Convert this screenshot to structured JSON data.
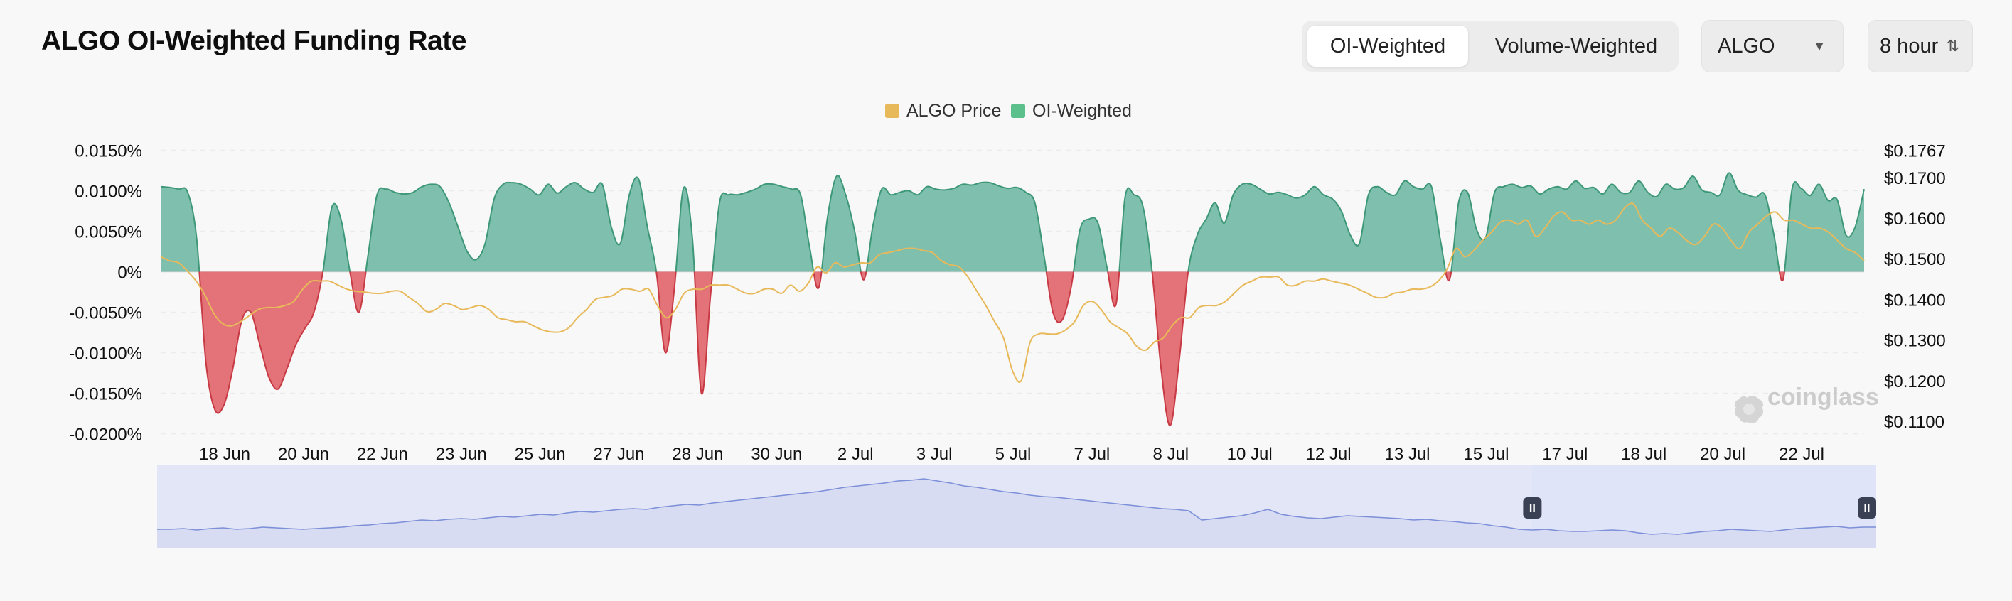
{
  "header": {
    "title": "ALGO OI-Weighted Funding Rate",
    "tabs": [
      {
        "label": "OI-Weighted",
        "active": true
      },
      {
        "label": "Volume-Weighted",
        "active": false
      }
    ],
    "symbol_select": {
      "value": "ALGO"
    },
    "interval_select": {
      "value": "8 hour"
    }
  },
  "watermark": "coinglass",
  "colors": {
    "positive_fill": "#7fbfae",
    "positive_line": "#3e9878",
    "negative_fill": "#e37378",
    "negative_line": "#c83a44",
    "price_line": "#e8b95a",
    "navigator_fill": "#e3e6f6",
    "navigator_line": "#7c8fd8",
    "navigator_window": "#dde2fa"
  },
  "chart_data": {
    "type": "area",
    "title": "ALGO OI-Weighted Funding Rate",
    "legend": [
      {
        "name": "ALGO Price",
        "color": "#e8b95a"
      },
      {
        "name": "OI-Weighted",
        "color": "#5cc08c"
      }
    ],
    "legend_position": "top-center",
    "x_tick_labels": [
      "18 Jun",
      "20 Jun",
      "22 Jun",
      "23 Jun",
      "25 Jun",
      "27 Jun",
      "28 Jun",
      "30 Jun",
      "2 Jul",
      "3 Jul",
      "5 Jul",
      "7 Jul",
      "8 Jul",
      "10 Jul",
      "12 Jul",
      "13 Jul",
      "15 Jul",
      "17 Jul",
      "18 Jul",
      "20 Jul",
      "22 Jul"
    ],
    "y_left": {
      "ylim": [
        -0.02,
        0.015
      ],
      "tick_values": [
        0.015,
        0.01,
        0.005,
        0,
        -0.005,
        -0.01,
        -0.015,
        -0.02
      ],
      "tick_labels": [
        "0.0150%",
        "0.0100%",
        "0.0050%",
        "0%",
        "-0.0050%",
        "-0.0100%",
        "-0.0150%",
        "-0.0200%"
      ]
    },
    "y_right": {
      "ylim": [
        0.11,
        0.1767
      ],
      "tick_values": [
        0.1767,
        0.17,
        0.16,
        0.15,
        0.14,
        0.13,
        0.12,
        0.11
      ],
      "tick_labels": [
        "$0.1767",
        "$0.1700",
        "$0.1600",
        "$0.1500",
        "$0.1400",
        "$0.1300",
        "$0.1200",
        "$0.1100"
      ]
    },
    "grid": true,
    "series": [
      {
        "name": "OI-Weighted",
        "unit": "%",
        "values": [
          0.0105,
          0.0104,
          0.0102,
          0.0098,
          0.004,
          -0.011,
          -0.017,
          -0.0165,
          -0.012,
          -0.006,
          -0.005,
          -0.009,
          -0.013,
          -0.0145,
          -0.012,
          -0.009,
          -0.007,
          -0.005,
          0.0,
          0.008,
          0.0065,
          0.0,
          -0.005,
          0.002,
          0.0095,
          0.0102,
          0.0098,
          0.0096,
          0.0098,
          0.0105,
          0.0108,
          0.0105,
          0.0085,
          0.0055,
          0.0025,
          0.0015,
          0.0035,
          0.009,
          0.0108,
          0.011,
          0.0108,
          0.0102,
          0.0095,
          0.0108,
          0.0097,
          0.0105,
          0.011,
          0.0102,
          0.0098,
          0.0108,
          0.0055,
          0.0035,
          0.0095,
          0.0115,
          0.0055,
          0.0,
          -0.01,
          -0.002,
          0.0103,
          0.004,
          -0.015,
          -0.003,
          0.0085,
          0.0095,
          0.0095,
          0.0098,
          0.0102,
          0.0108,
          0.0108,
          0.0105,
          0.0102,
          0.0095,
          0.003,
          -0.002,
          0.0068,
          0.0118,
          0.0095,
          0.005,
          -0.001,
          0.0055,
          0.0102,
          0.0095,
          0.0098,
          0.01,
          0.0095,
          0.0105,
          0.0102,
          0.0101,
          0.0103,
          0.0108,
          0.0107,
          0.011,
          0.011,
          0.0106,
          0.0103,
          0.0104,
          0.0098,
          0.0085,
          0.002,
          -0.005,
          -0.006,
          -0.002,
          0.0052,
          0.0065,
          0.006,
          0.0005,
          -0.004,
          0.0092,
          0.0095,
          0.008,
          0.0,
          -0.012,
          -0.019,
          -0.011,
          0.0,
          0.0045,
          0.0065,
          0.0085,
          0.006,
          0.0095,
          0.0108,
          0.0108,
          0.0102,
          0.0096,
          0.0098,
          0.0095,
          0.0091,
          0.0095,
          0.0105,
          0.0095,
          0.009,
          0.0075,
          0.0045,
          0.0035,
          0.0095,
          0.0105,
          0.0098,
          0.0095,
          0.0112,
          0.0105,
          0.0102,
          0.0105,
          0.0038,
          -0.001,
          0.0085,
          0.0098,
          0.0052,
          0.0042,
          0.0098,
          0.0105,
          0.0108,
          0.0104,
          0.0106,
          0.0096,
          0.0102,
          0.0105,
          0.0102,
          0.0112,
          0.0103,
          0.0104,
          0.0096,
          0.0108,
          0.0098,
          0.0098,
          0.0112,
          0.0098,
          0.0093,
          0.0108,
          0.0102,
          0.0104,
          0.0118,
          0.0101,
          0.0098,
          0.0095,
          0.0122,
          0.0101,
          0.0095,
          0.0092,
          0.0095,
          0.0045,
          -0.001,
          0.0102,
          0.0103,
          0.0094,
          0.0108,
          0.0088,
          0.0089,
          0.0045,
          0.0055,
          0.0102
        ]
      },
      {
        "name": "ALGO Price",
        "unit": "$",
        "values": [
          0.1505,
          0.1495,
          0.149,
          0.147,
          0.1445,
          0.141,
          0.1365,
          0.134,
          0.1335,
          0.1345,
          0.136,
          0.1375,
          0.138,
          0.138,
          0.1385,
          0.1395,
          0.1425,
          0.1445,
          0.1445,
          0.1445,
          0.1435,
          0.1425,
          0.142,
          0.1418,
          0.1415,
          0.1415,
          0.142,
          0.142,
          0.1405,
          0.139,
          0.137,
          0.1375,
          0.139,
          0.1385,
          0.1375,
          0.138,
          0.1385,
          0.1375,
          0.1355,
          0.135,
          0.1345,
          0.1345,
          0.1335,
          0.1325,
          0.132,
          0.132,
          0.133,
          0.1355,
          0.1375,
          0.14,
          0.1405,
          0.141,
          0.1425,
          0.1425,
          0.142,
          0.1425,
          0.1385,
          0.1355,
          0.1375,
          0.1415,
          0.1425,
          0.1425,
          0.1435,
          0.1435,
          0.1435,
          0.1425,
          0.1415,
          0.1415,
          0.1425,
          0.1425,
          0.1415,
          0.1435,
          0.142,
          0.144,
          0.148,
          0.1465,
          0.149,
          0.148,
          0.1485,
          0.149,
          0.149,
          0.151,
          0.1515,
          0.152,
          0.1525,
          0.1525,
          0.152,
          0.1515,
          0.1495,
          0.1485,
          0.148,
          0.1455,
          0.142,
          0.1385,
          0.1345,
          0.1305,
          0.1225,
          0.12,
          0.1295,
          0.1315,
          0.1315,
          0.1315,
          0.1325,
          0.1345,
          0.1385,
          0.1395,
          0.1375,
          0.1345,
          0.133,
          0.1315,
          0.1285,
          0.1275,
          0.1295,
          0.1305,
          0.1335,
          0.1355,
          0.1355,
          0.138,
          0.1385,
          0.1385,
          0.1395,
          0.1415,
          0.1435,
          0.1445,
          0.1455,
          0.1455,
          0.1455,
          0.1435,
          0.1435,
          0.1445,
          0.1445,
          0.145,
          0.1445,
          0.144,
          0.1435,
          0.1425,
          0.1415,
          0.1405,
          0.1405,
          0.1415,
          0.1418,
          0.1425,
          0.1425,
          0.143,
          0.1445,
          0.1475,
          0.1525,
          0.1505,
          0.152,
          0.1545,
          0.1565,
          0.159,
          0.1595,
          0.1585,
          0.1595,
          0.1555,
          0.1575,
          0.1605,
          0.1615,
          0.1595,
          0.1595,
          0.1585,
          0.1595,
          0.1585,
          0.1595,
          0.1625,
          0.1635,
          0.1595,
          0.1575,
          0.1555,
          0.1575,
          0.1565,
          0.1545,
          0.1535,
          0.1555,
          0.1585,
          0.1575,
          0.1545,
          0.1525,
          0.1565,
          0.1585,
          0.1605,
          0.1615,
          0.1595,
          0.1595,
          0.1585,
          0.1575,
          0.1575,
          0.1565,
          0.1545,
          0.1525,
          0.1515,
          0.1495
        ]
      }
    ],
    "navigator": {
      "values": [
        0.27,
        0.27,
        0.28,
        0.26,
        0.28,
        0.29,
        0.27,
        0.28,
        0.3,
        0.29,
        0.28,
        0.27,
        0.28,
        0.29,
        0.3,
        0.32,
        0.33,
        0.35,
        0.36,
        0.38,
        0.4,
        0.39,
        0.41,
        0.42,
        0.41,
        0.43,
        0.45,
        0.44,
        0.46,
        0.48,
        0.47,
        0.5,
        0.52,
        0.51,
        0.53,
        0.55,
        0.56,
        0.55,
        0.58,
        0.6,
        0.62,
        0.61,
        0.64,
        0.66,
        0.68,
        0.7,
        0.72,
        0.74,
        0.76,
        0.78,
        0.8,
        0.83,
        0.86,
        0.88,
        0.9,
        0.92,
        0.95,
        0.96,
        0.98,
        0.95,
        0.92,
        0.88,
        0.86,
        0.83,
        0.8,
        0.78,
        0.75,
        0.73,
        0.72,
        0.7,
        0.68,
        0.66,
        0.64,
        0.62,
        0.6,
        0.58,
        0.56,
        0.55,
        0.53,
        0.4,
        0.42,
        0.44,
        0.46,
        0.5,
        0.55,
        0.48,
        0.45,
        0.43,
        0.42,
        0.44,
        0.46,
        0.45,
        0.44,
        0.43,
        0.42,
        0.4,
        0.41,
        0.39,
        0.38,
        0.36,
        0.35,
        0.32,
        0.3,
        0.27,
        0.26,
        0.27,
        0.25,
        0.24,
        0.24,
        0.25,
        0.26,
        0.25,
        0.22,
        0.2,
        0.21,
        0.2,
        0.22,
        0.24,
        0.25,
        0.27,
        0.26,
        0.25,
        0.24,
        0.26,
        0.28,
        0.29,
        0.3,
        0.31,
        0.29,
        0.3,
        0.3
      ],
      "window": [
        0.8,
        1.0
      ]
    }
  }
}
